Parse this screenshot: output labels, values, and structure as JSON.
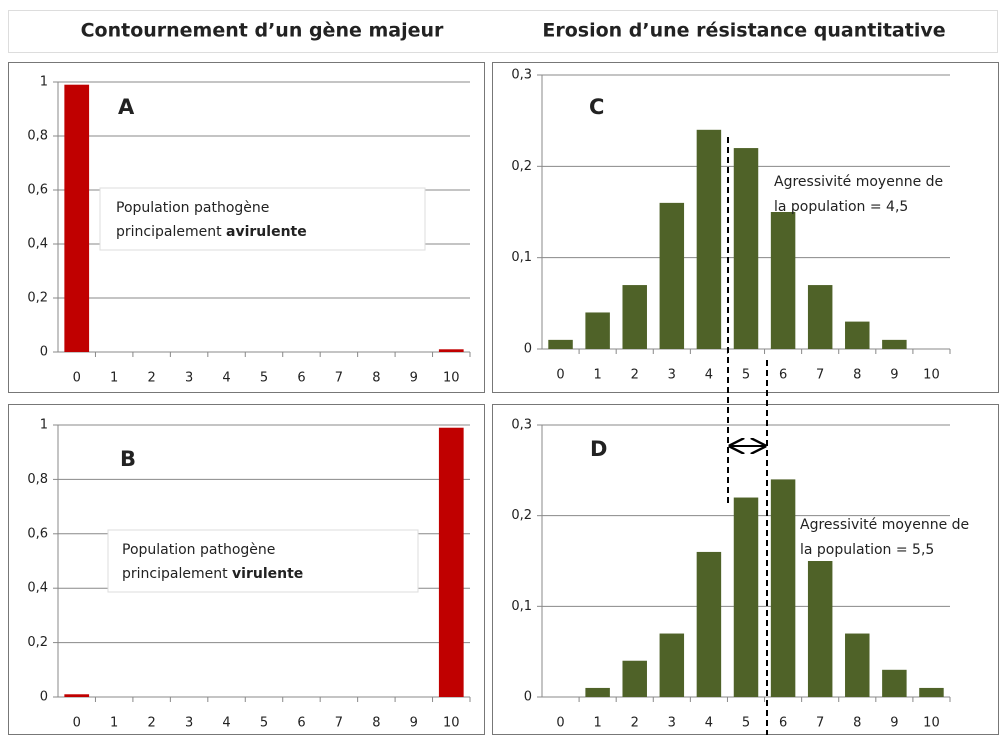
{
  "headers": [
    "Contournement d’un gène majeur",
    "Erosion d’une résistance quantitative"
  ],
  "chart_data": [
    {
      "type": "bar",
      "letter": "A",
      "categories": [
        "0",
        "1",
        "2",
        "3",
        "4",
        "5",
        "6",
        "7",
        "8",
        "9",
        "10"
      ],
      "values": [
        0.99,
        0,
        0,
        0,
        0,
        0,
        0,
        0,
        0,
        0,
        0.01
      ],
      "color": "#c00000",
      "ylim": [
        0,
        1
      ],
      "yticks": [
        0,
        {
          "value": 0.2,
          "label": "0,2"
        },
        {
          "value": 0.4,
          "label": "0,4"
        },
        {
          "value": 0.6,
          "label": "0,6"
        },
        {
          "value": 0.8,
          "label": "0,8"
        },
        1
      ],
      "grid": true,
      "annotation": {
        "lines": [
          "Population pathogène",
          "principalement"
        ],
        "emphasis": "avirulente"
      }
    },
    {
      "type": "bar",
      "letter": "B",
      "categories": [
        "0",
        "1",
        "2",
        "3",
        "4",
        "5",
        "6",
        "7",
        "8",
        "9",
        "10"
      ],
      "values": [
        0.01,
        0,
        0,
        0,
        0,
        0,
        0,
        0,
        0,
        0,
        0.99
      ],
      "color": "#c00000",
      "ylim": [
        0,
        1
      ],
      "yticks": [
        0,
        {
          "value": 0.2,
          "label": "0,2"
        },
        {
          "value": 0.4,
          "label": "0,4"
        },
        {
          "value": 0.6,
          "label": "0,6"
        },
        {
          "value": 0.8,
          "label": "0,8"
        },
        1
      ],
      "grid": true,
      "annotation": {
        "lines": [
          "Population pathogène",
          "principalement"
        ],
        "emphasis": "virulente"
      }
    },
    {
      "type": "bar",
      "letter": "C",
      "categories": [
        "0",
        "1",
        "2",
        "3",
        "4",
        "5",
        "6",
        "7",
        "8",
        "9",
        "10"
      ],
      "values": [
        0.01,
        0.04,
        0.07,
        0.16,
        0.24,
        0.22,
        0.15,
        0.07,
        0.03,
        0.01,
        0
      ],
      "color": "#4f6228",
      "ylim": [
        0,
        0.3
      ],
      "yticks": [
        0,
        {
          "value": 0.1,
          "label": "0,1"
        },
        {
          "value": 0.2,
          "label": "0,2"
        },
        {
          "value": 0.3,
          "label": "0,3"
        }
      ],
      "grid": true,
      "annotation": {
        "lines": [
          "Agressivité moyenne de",
          "la population = 4,5"
        ]
      }
    },
    {
      "type": "bar",
      "letter": "D",
      "categories": [
        "0",
        "1",
        "2",
        "3",
        "4",
        "5",
        "6",
        "7",
        "8",
        "9",
        "10"
      ],
      "values": [
        0,
        0.01,
        0.04,
        0.07,
        0.16,
        0.22,
        0.24,
        0.15,
        0.07,
        0.03,
        0.01
      ],
      "color": "#4f6228",
      "ylim": [
        0,
        0.3
      ],
      "yticks": [
        0,
        {
          "value": 0.1,
          "label": "0,1"
        },
        {
          "value": 0.2,
          "label": "0,2"
        },
        {
          "value": 0.3,
          "label": "0,3"
        }
      ],
      "grid": true,
      "annotation": {
        "lines": [
          "Agressivité moyenne de",
          "la population = 5,5"
        ]
      }
    }
  ]
}
